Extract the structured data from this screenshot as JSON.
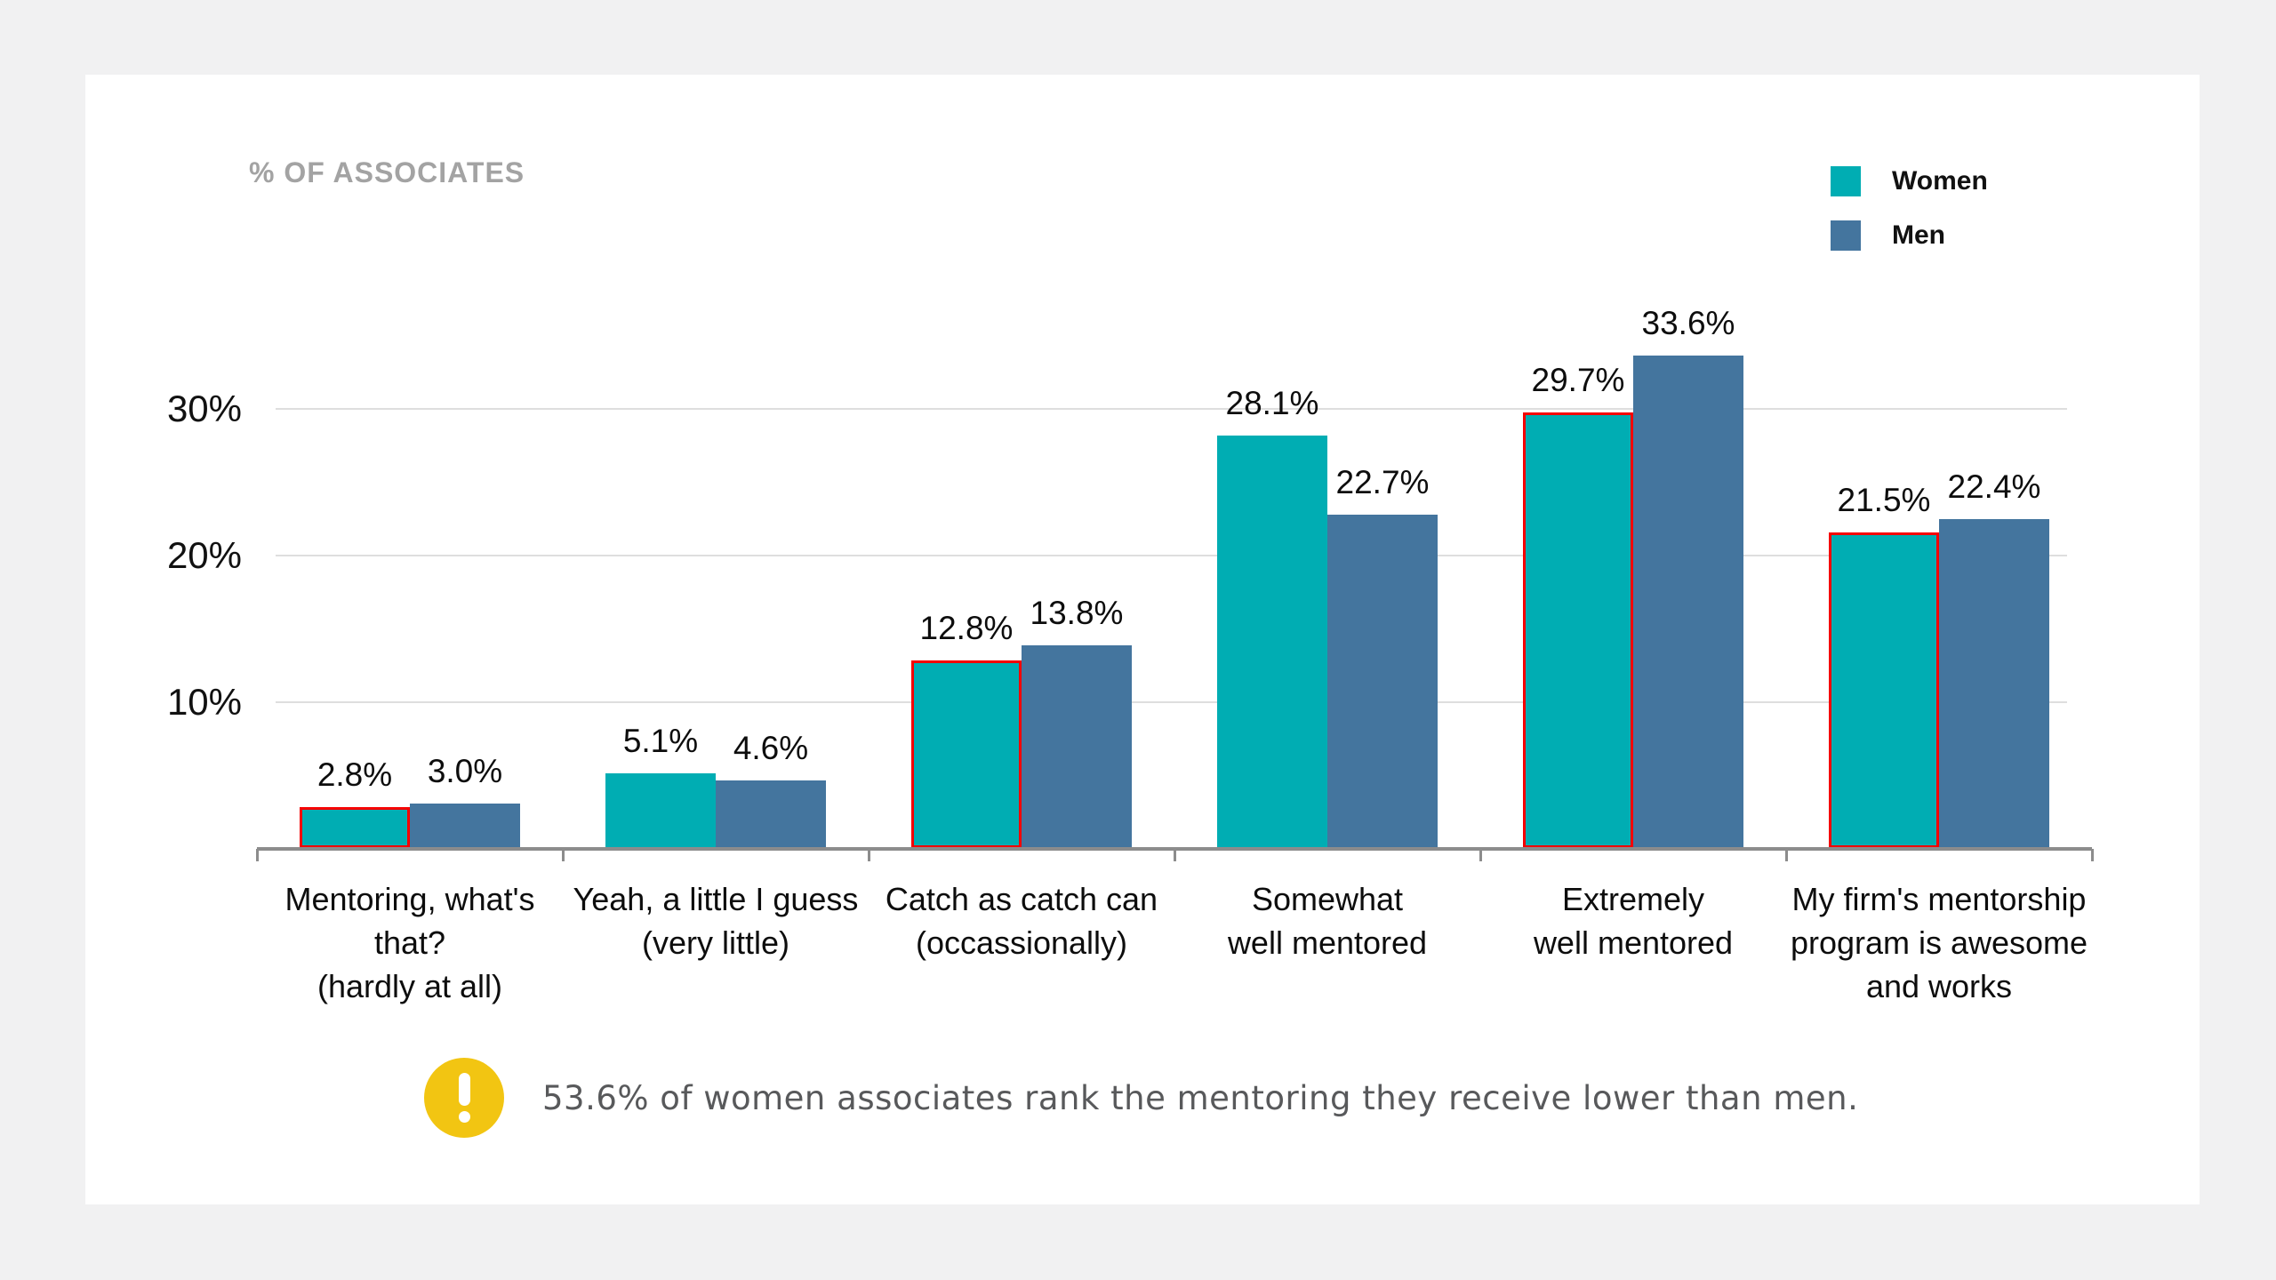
{
  "header": {
    "title": "% OF ASSOCIATES"
  },
  "legend": {
    "items": [
      {
        "label": "Women",
        "color": "#00adb3"
      },
      {
        "label": "Men",
        "color": "#44759e"
      }
    ]
  },
  "chart_data": {
    "type": "bar",
    "title": "% OF ASSOCIATES",
    "categories": [
      "Mentoring, what's\nthat?\n(hardly at all)",
      "Yeah, a little I guess\n(very little)",
      "Catch as catch can\n(occassionally)",
      "Somewhat\nwell mentored",
      "Extremely\nwell mentored",
      "My firm's mentorship\nprogram is awesome\nand works"
    ],
    "series": [
      {
        "name": "Women",
        "color": "#00adb3",
        "values": [
          2.8,
          5.1,
          12.8,
          28.1,
          29.7,
          21.5
        ],
        "labels": [
          "2.8%",
          "5.1%",
          "12.8%",
          "28.1%",
          "29.7%",
          "21.5%"
        ]
      },
      {
        "name": "Men",
        "color": "#44759e",
        "values": [
          3.0,
          4.6,
          13.8,
          22.7,
          33.6,
          22.4
        ],
        "labels": [
          "3.0%",
          "4.6%",
          "13.8%",
          "22.7%",
          "33.6%",
          "22.4%"
        ]
      }
    ],
    "ylabel": "% OF ASSOCIATES",
    "yticks": [
      10,
      20,
      30
    ],
    "ytick_labels": [
      "10%",
      "20%",
      "30%"
    ],
    "ylim": [
      0,
      36
    ],
    "grid": true,
    "legend_position": "top-right",
    "highlight": {
      "series": "Women",
      "category_indices": [
        0,
        2,
        4,
        5
      ],
      "style": "red-outline",
      "color": "#f50000"
    },
    "colors": {
      "gridline": "#dedede",
      "axis": "#8c8c8c",
      "background": "#ffffff",
      "page_background": "#f1f1f2"
    }
  },
  "callout": {
    "icon": "exclamation-circle-icon",
    "icon_color": "#f2c512",
    "text": "53.6% of women associates rank the mentoring they receive lower than men."
  }
}
